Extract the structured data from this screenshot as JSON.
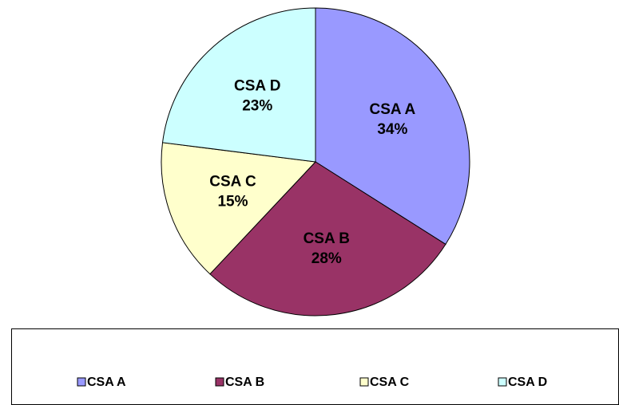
{
  "chart_data": {
    "type": "pie",
    "categories": [
      "CSA A",
      "CSA B",
      "CSA C",
      "CSA D"
    ],
    "values": [
      34,
      28,
      15,
      23
    ],
    "value_labels": [
      "34%",
      "28%",
      "15%",
      "23%"
    ],
    "colors": [
      "#9999ff",
      "#993366",
      "#ffffcc",
      "#ccffff"
    ],
    "legend": "bottom"
  }
}
